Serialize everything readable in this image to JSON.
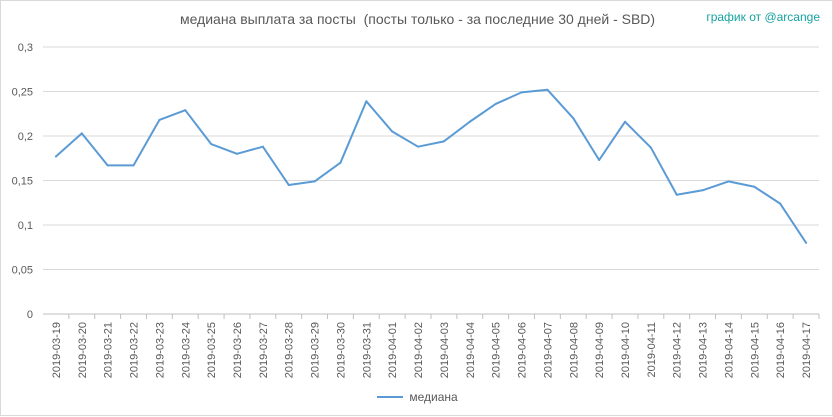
{
  "chart_data": {
    "type": "line",
    "title": "медиана выплата за посты  (посты только - за последние 30 дней - SBD)",
    "credit": "график от @arcange",
    "xlabel": "",
    "ylabel": "",
    "ylim": [
      0,
      0.3
    ],
    "yticks": [
      "0",
      "0,05",
      "0,1",
      "0,15",
      "0,2",
      "0,25",
      "0,3"
    ],
    "grid": true,
    "legend_position": "bottom",
    "categories": [
      "2019-03-19",
      "2019-03-20",
      "2019-03-21",
      "2019-03-22",
      "2019-03-23",
      "2019-03-24",
      "2019-03-25",
      "2019-03-26",
      "2019-03-27",
      "2019-03-28",
      "2019-03-29",
      "2019-03-30",
      "2019-03-31",
      "2019-04-01",
      "2019-04-02",
      "2019-04-03",
      "2019-04-04",
      "2019-04-05",
      "2019-04-06",
      "2019-04-07",
      "2019-04-08",
      "2019-04-09",
      "2019-04-10",
      "2019-04-11",
      "2019-04-12",
      "2019-04-13",
      "2019-04-14",
      "2019-04-15",
      "2019-04-16",
      "2019-04-17"
    ],
    "series": [
      {
        "name": "медиана",
        "color": "#5b9bd5",
        "values": [
          0.177,
          0.203,
          0.167,
          0.167,
          0.218,
          0.229,
          0.191,
          0.18,
          0.188,
          0.145,
          0.149,
          0.17,
          0.239,
          0.205,
          0.188,
          0.194,
          0.216,
          0.236,
          0.249,
          0.252,
          0.22,
          0.173,
          0.216,
          0.187,
          0.134,
          0.139,
          0.149,
          0.143,
          0.124,
          0.08
        ]
      }
    ]
  }
}
